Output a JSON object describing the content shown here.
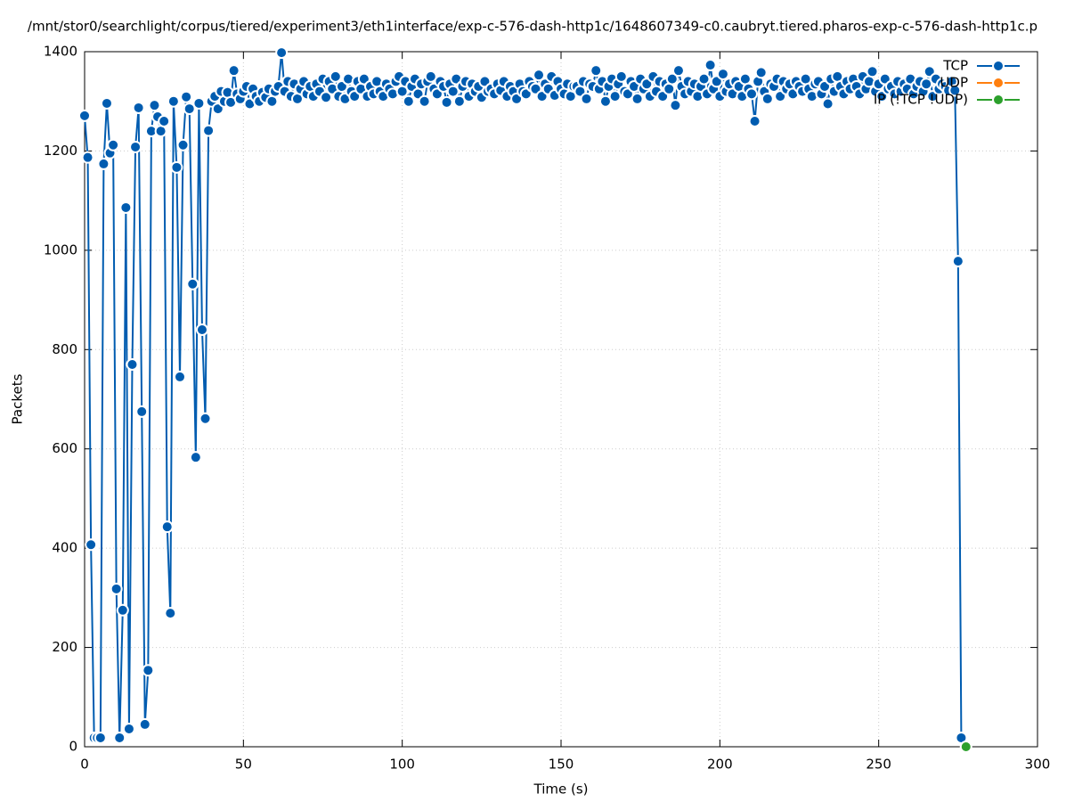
{
  "chart_data": {
    "type": "line",
    "title": "/mnt/stor0/searchlight/corpus/tiered/experiment3/eth1interface/exp-c-576-dash-http1c/1648607349-c0.caubryt.tiered.pharos-exp-c-576-dash-http1c.p",
    "xlabel": "Time (s)",
    "ylabel": "Packets",
    "xlim": [
      0,
      300
    ],
    "xticks": [
      0,
      50,
      100,
      150,
      200,
      250,
      300
    ],
    "ylim": [
      0,
      1400
    ],
    "yticks": [
      0,
      200,
      400,
      600,
      800,
      1000,
      1200,
      1400
    ],
    "grid": true,
    "legend": "top right",
    "series": [
      {
        "name": "TCP",
        "color": "#005cb0",
        "x": [
          0,
          1,
          2,
          3,
          4,
          5,
          6,
          7,
          8,
          9,
          10,
          11,
          12,
          13,
          14,
          15,
          16,
          17,
          18,
          19,
          20,
          21,
          22,
          23,
          24,
          25,
          26,
          27,
          28,
          29,
          30,
          31,
          32,
          33,
          34,
          35,
          36,
          37,
          38,
          39,
          40,
          41,
          42,
          43,
          44,
          45,
          46,
          47,
          48,
          49,
          50,
          51,
          52,
          53,
          54,
          55,
          56,
          57,
          58,
          59,
          60,
          61,
          62,
          63,
          64,
          65,
          66,
          67,
          68,
          69,
          70,
          71,
          72,
          73,
          74,
          75,
          76,
          77,
          78,
          79,
          80,
          81,
          82,
          83,
          84,
          85,
          86,
          87,
          88,
          89,
          90,
          91,
          92,
          93,
          94,
          95,
          96,
          97,
          98,
          99,
          100,
          101,
          102,
          103,
          104,
          105,
          106,
          107,
          108,
          109,
          110,
          111,
          112,
          113,
          114,
          115,
          116,
          117,
          118,
          119,
          120,
          121,
          122,
          123,
          124,
          125,
          126,
          127,
          128,
          129,
          130,
          131,
          132,
          133,
          134,
          135,
          136,
          137,
          138,
          139,
          140,
          141,
          142,
          143,
          144,
          145,
          146,
          147,
          148,
          149,
          150,
          151,
          152,
          153,
          154,
          155,
          156,
          157,
          158,
          159,
          160,
          161,
          162,
          163,
          164,
          165,
          166,
          167,
          168,
          169,
          170,
          171,
          172,
          173,
          174,
          175,
          176,
          177,
          178,
          179,
          180,
          181,
          182,
          183,
          184,
          185,
          186,
          187,
          188,
          189,
          190,
          191,
          192,
          193,
          194,
          195,
          196,
          197,
          198,
          199,
          200,
          201,
          202,
          203,
          204,
          205,
          206,
          207,
          208,
          209,
          210,
          211,
          212,
          213,
          214,
          215,
          216,
          217,
          218,
          219,
          220,
          221,
          222,
          223,
          224,
          225,
          226,
          227,
          228,
          229,
          230,
          231,
          232,
          233,
          234,
          235,
          236,
          237,
          238,
          239,
          240,
          241,
          242,
          243,
          244,
          245,
          246,
          247,
          248,
          249,
          250,
          251,
          252,
          253,
          254,
          255,
          256,
          257,
          258,
          259,
          260,
          261,
          262,
          263,
          264,
          265,
          266,
          267,
          268,
          269,
          270,
          271,
          272,
          273,
          274,
          275,
          276
        ],
        "values": [
          1271,
          1187,
          407,
          18,
          18,
          18,
          1174,
          1296,
          1196,
          1212,
          318,
          18,
          275,
          1086,
          36,
          770,
          1208,
          1287,
          675,
          45,
          154,
          1240,
          1292,
          1269,
          1240,
          1260,
          443,
          269,
          1300,
          1167,
          745,
          1212,
          1309,
          1285,
          932,
          583,
          1296,
          840,
          661,
          1241,
          1300,
          1310,
          1285,
          1320,
          1300,
          1318,
          1298,
          1362,
          1315,
          1305,
          1320,
          1330,
          1295,
          1325,
          1310,
          1300,
          1318,
          1308,
          1325,
          1300,
          1320,
          1330,
          1398,
          1320,
          1340,
          1310,
          1335,
          1305,
          1325,
          1340,
          1315,
          1330,
          1310,
          1335,
          1320,
          1345,
          1308,
          1340,
          1325,
          1350,
          1310,
          1330,
          1305,
          1345,
          1320,
          1310,
          1340,
          1325,
          1345,
          1310,
          1330,
          1315,
          1340,
          1320,
          1310,
          1335,
          1325,
          1315,
          1340,
          1350,
          1320,
          1340,
          1300,
          1330,
          1345,
          1315,
          1335,
          1300,
          1340,
          1350,
          1325,
          1315,
          1340,
          1330,
          1298,
          1335,
          1320,
          1345,
          1300,
          1330,
          1340,
          1310,
          1335,
          1320,
          1330,
          1308,
          1340,
          1320,
          1325,
          1315,
          1335,
          1322,
          1340,
          1310,
          1330,
          1320,
          1305,
          1335,
          1320,
          1315,
          1340,
          1330,
          1325,
          1353,
          1310,
          1335,
          1325,
          1350,
          1312,
          1340,
          1325,
          1315,
          1335,
          1310,
          1330,
          1330,
          1320,
          1340,
          1305,
          1335,
          1330,
          1362,
          1325,
          1340,
          1300,
          1330,
          1345,
          1310,
          1335,
          1350,
          1320,
          1315,
          1340,
          1330,
          1305,
          1345,
          1325,
          1335,
          1310,
          1350,
          1320,
          1340,
          1310,
          1335,
          1325,
          1345,
          1292,
          1362,
          1330,
          1315,
          1340,
          1320,
          1335,
          1310,
          1330,
          1345,
          1315,
          1373,
          1325,
          1340,
          1310,
          1355,
          1320,
          1335,
          1315,
          1340,
          1330,
          1310,
          1345,
          1325,
          1315,
          1260,
          1340,
          1358,
          1320,
          1305,
          1335,
          1330,
          1345,
          1310,
          1340,
          1325,
          1335,
          1315,
          1340,
          1330,
          1320,
          1345,
          1325,
          1310,
          1335,
          1340,
          1315,
          1330,
          1295,
          1345,
          1320,
          1350,
          1330,
          1315,
          1340,
          1325,
          1345,
          1330,
          1315,
          1350,
          1325,
          1340,
          1360,
          1320,
          1335,
          1310,
          1345,
          1325,
          1330,
          1315,
          1340,
          1320,
          1335,
          1325,
          1345,
          1315,
          1330,
          1340,
          1320,
          1335,
          1360,
          1310,
          1345,
          1325,
          1335,
          1330,
          1322,
          1340,
          1322,
          978,
          18
        ]
      },
      {
        "name": "UDP",
        "color": "#ff7f0e",
        "x": [],
        "values": []
      },
      {
        "name": "IP (!TCP  !UDP)",
        "color": "#2ca02c",
        "x": [
          277.5
        ],
        "values": [
          0
        ]
      }
    ]
  }
}
